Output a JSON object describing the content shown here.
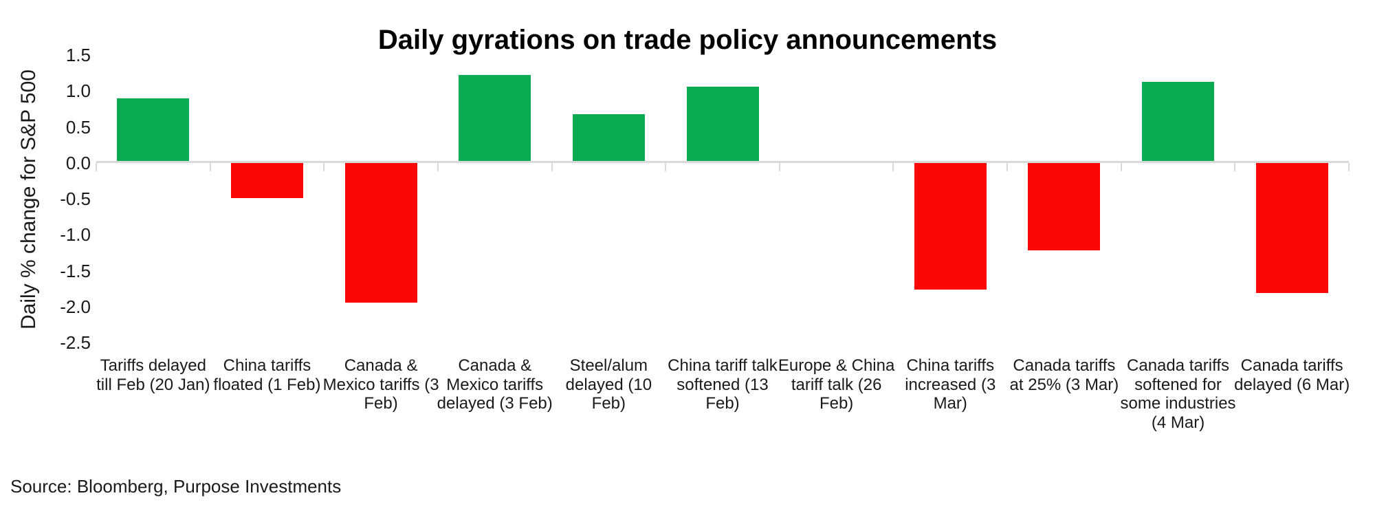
{
  "source": "Source: Bloomberg, Purpose Investments",
  "colors": {
    "positive": "#0aab52",
    "negative": "#fa0707",
    "axis": "#d9d9d9",
    "text": "#1a1a1a",
    "title": "#000000"
  },
  "chart_data": {
    "type": "bar",
    "title": "Daily gyrations on trade policy announcements",
    "xlabel": "",
    "ylabel": "Daily % change for S&P 500",
    "ylim": [
      -2.5,
      1.5
    ],
    "yticks": [
      1.5,
      1.0,
      0.5,
      0.0,
      -0.5,
      -1.0,
      -1.5,
      -2.0,
      -2.5
    ],
    "grid": false,
    "legend": false,
    "categories": [
      "Tariffs delayed till Feb (20 Jan)",
      "China tariffs floated (1 Feb)",
      "Canada & Mexico tariffs (3 Feb)",
      "Canada & Mexico tariffs delayed (3 Feb)",
      "Steel/alum delayed (10 Feb)",
      "China tariff talk softened (13 Feb)",
      "Europe & China tariff talk (26 Feb)",
      "China tariffs increased (3 Mar)",
      "Canada tariffs at 25% (3 Mar)",
      "Canada tariffs softened for some industries (4 Mar)",
      "Canada tariffs delayed (6 Mar)"
    ],
    "values": [
      0.88,
      -0.51,
      -1.96,
      1.2,
      0.66,
      1.04,
      0.01,
      -1.78,
      -1.24,
      1.11,
      -1.83
    ],
    "series_note": "positive days green, negative days red"
  }
}
